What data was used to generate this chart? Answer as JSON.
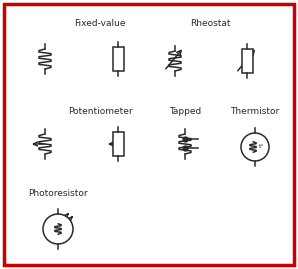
{
  "bg_color": "#ffffff",
  "border_color": "#cc0000",
  "symbol_color": "#2a2a2a",
  "labels": {
    "fixed_value": "Fixed-value",
    "rheostat": "Rheostat",
    "potentiometer": "Potentiometer",
    "tapped": "Tapped",
    "thermistor": "Thermistor",
    "photoresistor": "Photoresistor"
  },
  "label_fontsize": 6.5,
  "line_width": 1.1,
  "figsize": [
    2.98,
    2.69
  ],
  "dpi": 100
}
